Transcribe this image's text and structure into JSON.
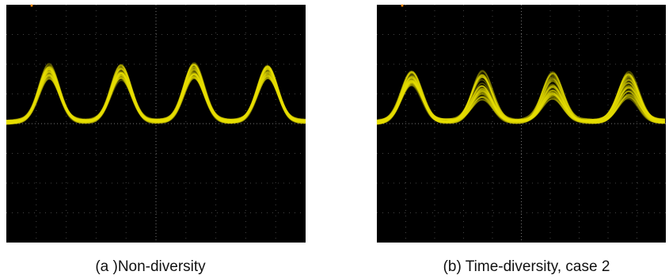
{
  "panels": [
    {
      "caption": "(a )Non-diversity"
    },
    {
      "caption": "(b) Time-diversity, case 2"
    }
  ]
}
